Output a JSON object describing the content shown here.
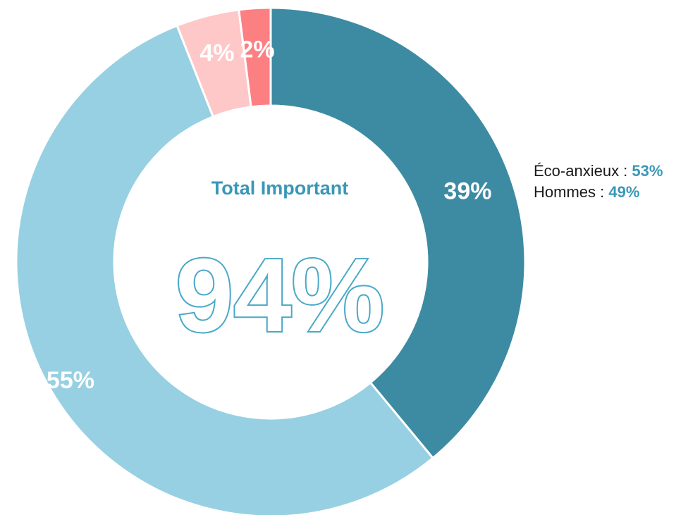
{
  "chart_data": {
    "type": "pie",
    "variant": "donut",
    "slices": [
      {
        "value": 39,
        "label": "39%",
        "color": "#3d8ba3"
      },
      {
        "value": 55,
        "label": "55%",
        "color": "#97d0e2"
      },
      {
        "value": 4,
        "label": "4%",
        "color": "#fec7c8"
      },
      {
        "value": 2,
        "label": "2%",
        "color": "#fc7f82"
      }
    ],
    "center": {
      "title": "Total Important",
      "value": "94%"
    },
    "annotations": [
      {
        "label": "Éco-anxieux :",
        "value": "53%"
      },
      {
        "label": "Hommes :",
        "value": "49%"
      }
    ]
  }
}
